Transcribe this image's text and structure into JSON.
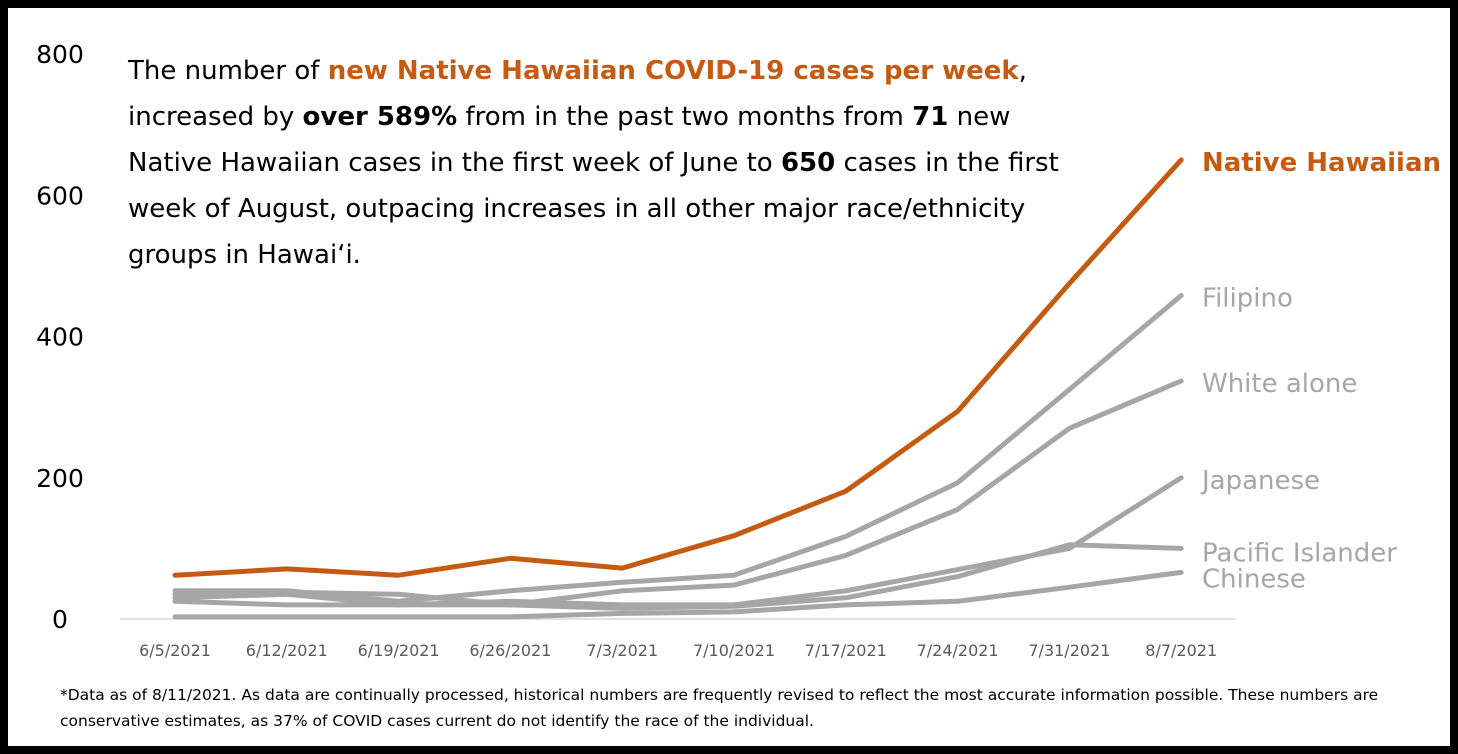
{
  "headline": {
    "t1": "The number of ",
    "h1": "new Native Hawaiian COVID-19 cases per week",
    "t2": ", increased by ",
    "b1": "over 589%",
    "t3": " from in the past two months from ",
    "b2": "71",
    "t4": " new Native Hawaiian cases in the first week of June to ",
    "b3": "650",
    "t5": " cases in the first week of August, outpacing increases in all other major race/ethnicity groups in Hawai‘i."
  },
  "footnote": "*Data as of 8/11/2021. As data are continually processed, historical numbers are frequently revised to reflect the most accurate information possible. These numbers are conservative estimates, as 37% of COVID cases current do not identify the race of the individual.",
  "colors": {
    "highlight": "#c55a11",
    "other_series": "#a6a6a6",
    "axis": "#d9d9d9"
  },
  "chart_data": {
    "type": "line",
    "categories": [
      "6/5/2021",
      "6/12/2021",
      "6/19/2021",
      "6/26/2021",
      "7/3/2021",
      "7/10/2021",
      "7/17/2021",
      "7/24/2021",
      "7/31/2021",
      "8/7/2021"
    ],
    "ylim": [
      0,
      800
    ],
    "yticks": [
      0,
      200,
      400,
      600,
      800
    ],
    "grid": false,
    "legend": "direct labels at line ends",
    "series": [
      {
        "name": "Chinese",
        "values": [
          3,
          3,
          3,
          3,
          8,
          10,
          20,
          25,
          45,
          66
        ],
        "color": "#a6a6a6"
      },
      {
        "name": "Pacific Islander",
        "values": [
          25,
          20,
          20,
          20,
          15,
          18,
          30,
          60,
          105,
          100
        ],
        "color": "#a6a6a6"
      },
      {
        "name": "Japanese",
        "values": [
          30,
          35,
          20,
          25,
          20,
          20,
          40,
          70,
          100,
          200
        ],
        "color": "#a6a6a6"
      },
      {
        "name": "White alone",
        "values": [
          35,
          38,
          35,
          20,
          40,
          48,
          90,
          155,
          270,
          337
        ],
        "color": "#a6a6a6"
      },
      {
        "name": "Filipino",
        "values": [
          40,
          40,
          25,
          40,
          52,
          62,
          117,
          193,
          325,
          458
        ],
        "color": "#a6a6a6"
      },
      {
        "name": "Native Hawaiian",
        "values": [
          62,
          71,
          62,
          86,
          72,
          118,
          181,
          294,
          475,
          650
        ],
        "color": "#c55a11"
      }
    ]
  }
}
